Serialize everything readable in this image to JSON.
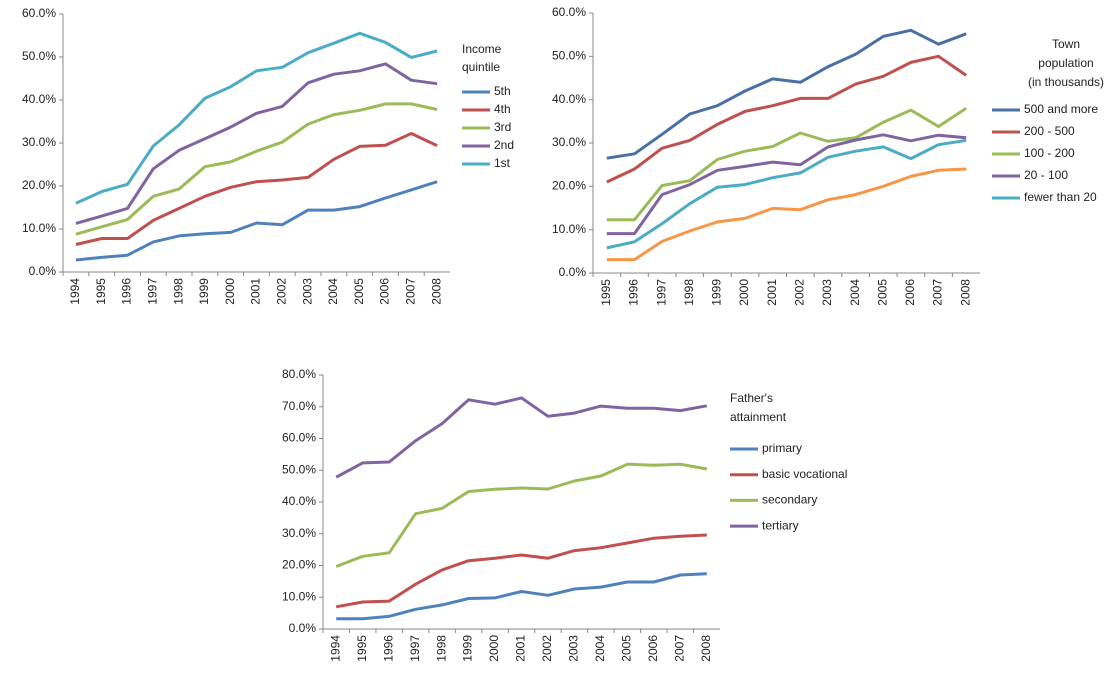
{
  "chart_data": [
    {
      "type": "line",
      "legend_title": [
        "Income",
        "quintile"
      ],
      "categories": [
        "1994",
        "1995",
        "1996",
        "1997",
        "1998",
        "1999",
        "2000",
        "2001",
        "2002",
        "2003",
        "2004",
        "2005",
        "2006",
        "2007",
        "2008"
      ],
      "ylim": [
        0,
        60
      ],
      "yticks": [
        {
          "value": 0,
          "label": "0.0%"
        },
        {
          "value": 10,
          "label": "10.0%"
        },
        {
          "value": 20,
          "label": "20.0%"
        },
        {
          "value": 30,
          "label": "30.0%"
        },
        {
          "value": 40,
          "label": "40.0%"
        },
        {
          "value": 50,
          "label": "50.0%"
        },
        {
          "value": 60,
          "label": "60.0%"
        }
      ],
      "legend": "right",
      "series": [
        {
          "name": "5th",
          "color": "#4f81bd",
          "values": [
            2.8,
            3.4,
            3.9,
            7,
            8.4,
            8.9,
            9.2,
            11.4,
            11,
            14.4,
            14.4,
            15.2,
            17.2,
            19.1,
            21
          ]
        },
        {
          "name": "4th",
          "color": "#c0504d",
          "values": [
            6.4,
            7.8,
            7.8,
            12,
            14.8,
            17.6,
            19.7,
            21,
            21.4,
            22,
            26.2,
            29.2,
            29.5,
            32.2,
            29.4
          ]
        },
        {
          "name": "3rd",
          "color": "#9bbb59",
          "values": [
            8.8,
            10.5,
            12.2,
            17.6,
            19.3,
            24.5,
            25.6,
            28.1,
            30.2,
            34.4,
            36.6,
            37.6,
            39.1,
            39.1,
            37.8
          ]
        },
        {
          "name": "2nd",
          "color": "#8064a2",
          "values": [
            11.3,
            13,
            14.8,
            24,
            28.3,
            31,
            33.7,
            36.9,
            38.5,
            44,
            46,
            46.8,
            48.4,
            44.6,
            43.8
          ]
        },
        {
          "name": "1st",
          "color": "#4bacc6",
          "values": [
            16,
            18.7,
            20.4,
            29.3,
            34.2,
            40.4,
            43.1,
            46.8,
            47.6,
            51,
            53.2,
            55.5,
            53.4,
            49.9,
            51.4
          ]
        }
      ]
    },
    {
      "type": "line",
      "legend_title": [
        "Town",
        "population",
        "(in thousands)"
      ],
      "categories": [
        "1995",
        "1996",
        "1997",
        "1998",
        "1999",
        "2000",
        "2001",
        "2002",
        "2003",
        "2004",
        "2005",
        "2006",
        "2007",
        "2008"
      ],
      "ylim": [
        0,
        60
      ],
      "yticks": [
        {
          "value": 0,
          "label": "0.0%"
        },
        {
          "value": 10,
          "label": "10.0%"
        },
        {
          "value": 20,
          "label": "20.0%"
        },
        {
          "value": 30,
          "label": "30.0%"
        },
        {
          "value": 40,
          "label": "40.0%"
        },
        {
          "value": 50,
          "label": "50.0%"
        },
        {
          "value": 60,
          "label": "60.0%"
        }
      ],
      "legend": "right",
      "series": [
        {
          "name": "500 and more",
          "color": "#4a6fa5",
          "values": [
            26.5,
            27.5,
            32,
            36.7,
            38.6,
            42,
            44.8,
            44,
            47.6,
            50.5,
            54.6,
            56,
            52.8,
            55.2
          ]
        },
        {
          "name": "200 - 500",
          "color": "#c0504d",
          "values": [
            21,
            24,
            28.8,
            30.6,
            34.3,
            37.3,
            38.6,
            40.3,
            40.3,
            43.6,
            45.4,
            48.6,
            50,
            45.6
          ]
        },
        {
          "name": "100 - 200",
          "color": "#9bbb59",
          "values": [
            12.3,
            12.3,
            20.2,
            21.3,
            26.2,
            28.1,
            29.2,
            32.3,
            30.4,
            31.2,
            34.8,
            37.6,
            33.8,
            38
          ]
        },
        {
          "name": "20 - 100",
          "color": "#8064a2",
          "values": [
            9.1,
            9.1,
            18.1,
            20.4,
            23.7,
            24.6,
            25.6,
            25,
            29.1,
            30.7,
            31.9,
            30.5,
            31.8,
            31.2
          ]
        },
        {
          "name": "fewer than 20",
          "color": "#4bacc6",
          "values": [
            5.8,
            7.2,
            11.4,
            16,
            19.8,
            20.4,
            22,
            23.1,
            26.7,
            28.1,
            29.1,
            26.4,
            29.6,
            30.6
          ]
        },
        {
          "color": "#f79646",
          "values": [
            3.1,
            3.1,
            7.3,
            9.7,
            11.8,
            12.6,
            14.9,
            14.6,
            16.9,
            18.1,
            20,
            22.3,
            23.7,
            24
          ]
        }
      ]
    },
    {
      "type": "line",
      "legend_title": [
        "Father's",
        "attainment"
      ],
      "categories": [
        "1994",
        "1995",
        "1996",
        "1997",
        "1998",
        "1999",
        "2000",
        "2001",
        "2002",
        "2003",
        "2004",
        "2005",
        "2006",
        "2007",
        "2008"
      ],
      "ylim": [
        0,
        80
      ],
      "yticks": [
        {
          "value": 0,
          "label": "0.0%"
        },
        {
          "value": 10,
          "label": "10.0%"
        },
        {
          "value": 20,
          "label": "20.0%"
        },
        {
          "value": 30,
          "label": "30.0%"
        },
        {
          "value": 40,
          "label": "40.0%"
        },
        {
          "value": 50,
          "label": "50.0%"
        },
        {
          "value": 60,
          "label": "60.0%"
        },
        {
          "value": 70,
          "label": "70.0%"
        },
        {
          "value": 80,
          "label": "80.0%"
        }
      ],
      "legend": "right",
      "series": [
        {
          "name": "primary",
          "color": "#4f81bd",
          "values": [
            3.2,
            3.2,
            4,
            6.2,
            7.6,
            9.6,
            9.8,
            11.8,
            10.6,
            12.6,
            13.2,
            14.8,
            14.8,
            17,
            17.4
          ]
        },
        {
          "name": "basic vocational",
          "color": "#c0504d",
          "values": [
            7,
            8.5,
            8.8,
            14.1,
            18.6,
            21.5,
            22.3,
            23.3,
            22.3,
            24.7,
            25.6,
            27.1,
            28.6,
            29.2,
            29.6
          ]
        },
        {
          "name": "secondary",
          "color": "#9bbb59",
          "values": [
            19.7,
            22.9,
            24,
            36.3,
            38,
            43.3,
            44,
            44.4,
            44.1,
            46.6,
            48.2,
            51.9,
            51.6,
            51.9,
            50.4
          ]
        },
        {
          "name": "tertiary",
          "color": "#8064a2",
          "values": [
            47.8,
            52.3,
            52.6,
            59.3,
            64.7,
            72.2,
            70.8,
            72.8,
            67,
            68,
            70.2,
            69.5,
            69.5,
            68.8,
            70.3
          ]
        }
      ]
    }
  ]
}
